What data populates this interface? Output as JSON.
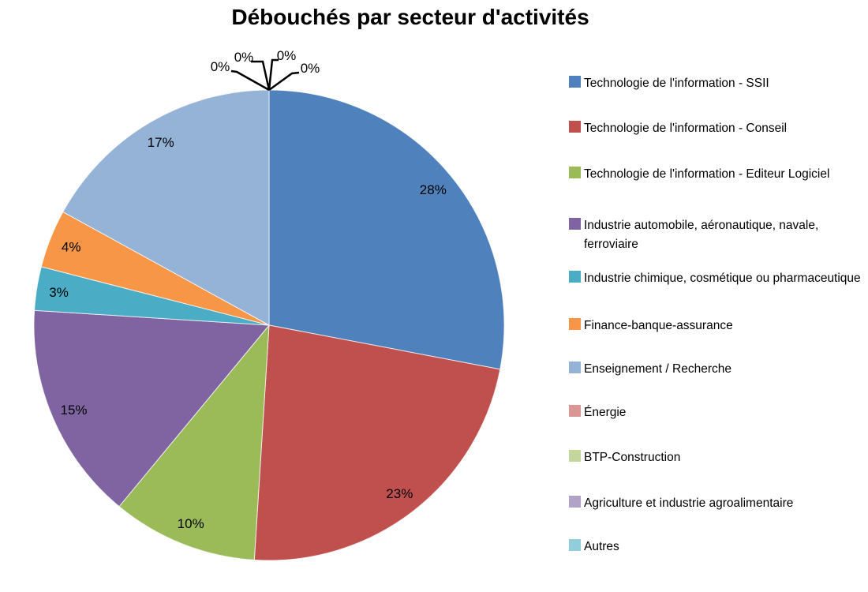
{
  "chart_data": {
    "type": "pie",
    "title": "Débouchés par secteur d'activités",
    "unit": "%",
    "legend_position": "right",
    "labels": [
      "Technologie de l'information - SSII",
      "Technologie de l'information - Conseil",
      "Technologie de l'information - Editeur Logiciel",
      "Industrie automobile, aéronautique, navale, ferroviaire",
      "Industrie chimique, cosmétique ou pharmaceutique",
      "Finance-banque-assurance",
      "Enseignement / Recherche",
      "Énergie",
      "BTP-Construction",
      "Agriculture et industrie agroalimentaire",
      "Autres"
    ],
    "values": [
      28,
      23,
      10,
      15,
      3,
      4,
      17,
      0,
      0,
      0,
      0
    ],
    "slice_label_format": "value%",
    "colors": [
      "#4F81BD",
      "#C0504D",
      "#9BBB59",
      "#8064A2",
      "#4BACC6",
      "#F79646",
      "#95B3D7",
      "#D99694",
      "#C3D69B",
      "#B3A2C7",
      "#92CDDC"
    ]
  }
}
